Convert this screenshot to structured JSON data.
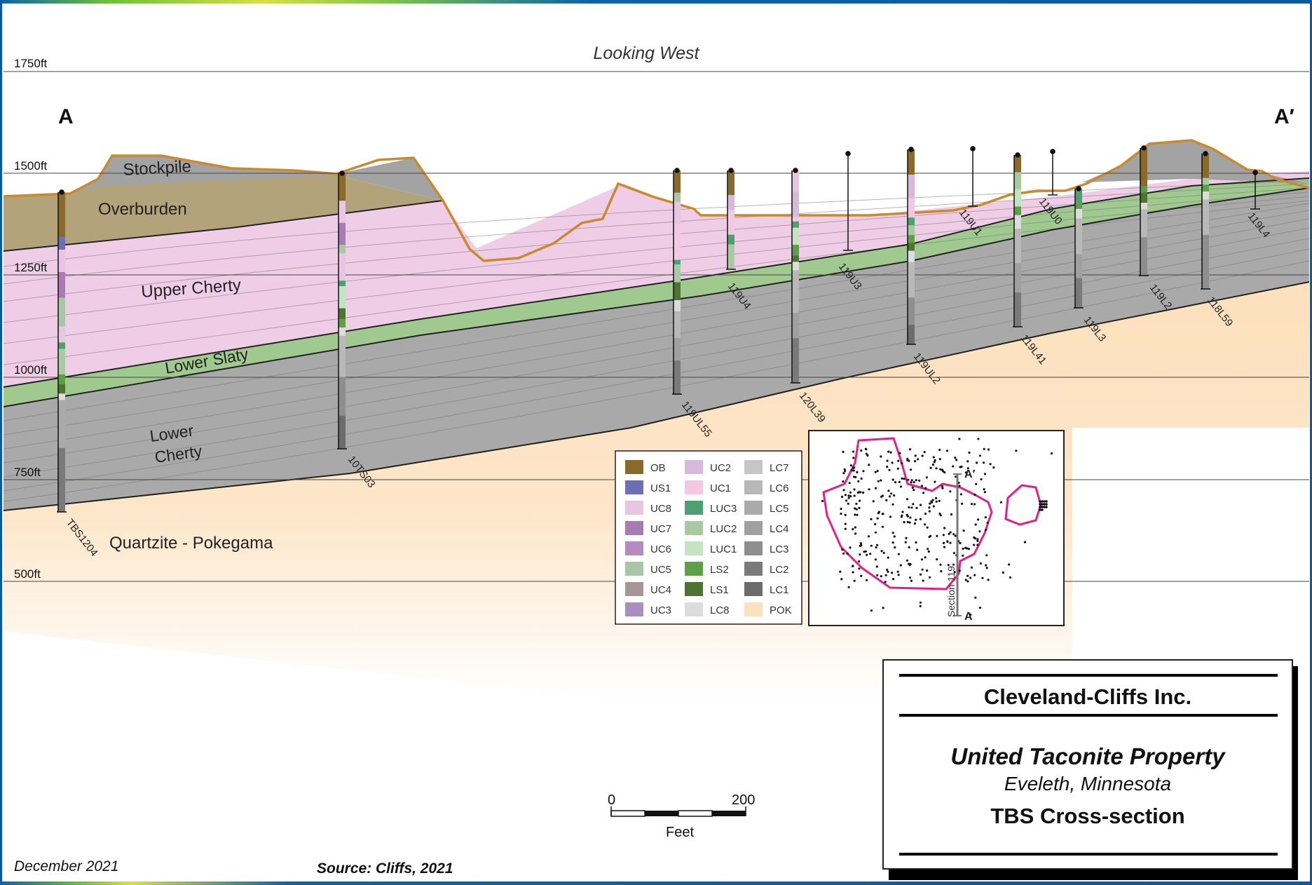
{
  "orientation_label": "Looking West",
  "section_ends": {
    "start": "A",
    "end": "A′"
  },
  "elevation_labels": [
    "1750ft",
    "1500ft",
    "1250ft",
    "1000ft",
    "750ft",
    "500ft"
  ],
  "unit_labels": {
    "stockpile": "Stockpile",
    "overburden": "Overburden",
    "upper_cherty": "Upper Cherty",
    "lower_slaty": "Lower Slaty",
    "lower_cherty_1": "Lower",
    "lower_cherty_2": "Cherty",
    "quartzite": "Quartzite - Pokegama"
  },
  "drillholes": [
    "TBS1204",
    "10TS03",
    "119UL55",
    "119U4",
    "120L39",
    "119U3",
    "119UL2",
    "119U1",
    "119L41",
    "119U0",
    "119L3",
    "119L2",
    "118L59",
    "119L4"
  ],
  "legend": {
    "columns": [
      [
        {
          "code": "OB",
          "color": "#8a6a2b"
        },
        {
          "code": "US1",
          "color": "#6e6eb4"
        },
        {
          "code": "UC8",
          "color": "#e6c6e0"
        },
        {
          "code": "UC7",
          "color": "#a77bb3"
        },
        {
          "code": "UC6",
          "color": "#b78ac2"
        },
        {
          "code": "UC5",
          "color": "#a9c6a5"
        },
        {
          "code": "UC4",
          "color": "#a89595"
        },
        {
          "code": "UC3",
          "color": "#a98ec0"
        }
      ],
      [
        {
          "code": "UC2",
          "color": "#d8b8dc"
        },
        {
          "code": "UC1",
          "color": "#f2c8e2"
        },
        {
          "code": "LUC3",
          "color": "#4da070"
        },
        {
          "code": "LUC2",
          "color": "#a7c9a3"
        },
        {
          "code": "LUC1",
          "color": "#c2e4c0"
        },
        {
          "code": "LS2",
          "color": "#5da048"
        },
        {
          "code": "LS1",
          "color": "#4e7434"
        },
        {
          "code": "LC8",
          "color": "#dcdcdc"
        }
      ],
      [
        {
          "code": "LC7",
          "color": "#c6c6c6"
        },
        {
          "code": "LC6",
          "color": "#b8b8b8"
        },
        {
          "code": "LC5",
          "color": "#aaaaaa"
        },
        {
          "code": "LC4",
          "color": "#a0a0a0"
        },
        {
          "code": "LC3",
          "color": "#8e8e8e"
        },
        {
          "code": "LC2",
          "color": "#7a7a7a"
        },
        {
          "code": "LC1",
          "color": "#6c6c6c"
        },
        {
          "code": "POK",
          "color": "#fde0bd"
        }
      ]
    ]
  },
  "inset_map": {
    "label_a": "A",
    "label_a_prime": "A′",
    "section_label": "Section 119",
    "outline_color": "#e0218a"
  },
  "scale_bar": {
    "min_label": "0",
    "max_label": "200",
    "unit": "Feet"
  },
  "title_block": {
    "company": "Cleveland-Cliffs Inc.",
    "project": "United Taconite Property",
    "location": "Eveleth, Minnesota",
    "section_title": "TBS Cross-section"
  },
  "footer": {
    "date": "December 2021",
    "source": "Source: Cliffs, 2021"
  },
  "colors": {
    "overburden": "#b2a37a",
    "stockpile": "#a3a3a3",
    "upper_cherty": "#f0cde6",
    "lower_slaty": "#9fc98f",
    "lower_cherty": "#a8a8a8",
    "quartzite": "#fde0bd",
    "topography_line": "#c98a2e"
  }
}
